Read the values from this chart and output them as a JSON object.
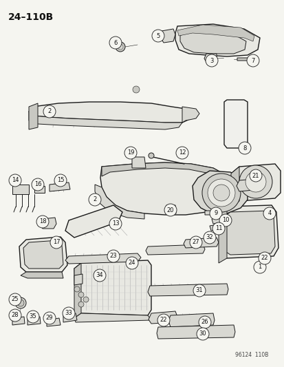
{
  "title": "24–110B",
  "bg_color": "#f5f5f0",
  "line_color": "#1a1a1a",
  "label_color": "#111111",
  "watermark": "96124  110B",
  "fig_width": 4.14,
  "fig_height": 5.33,
  "dpi": 100,
  "circle_r": 0.022,
  "label_fontsize": 6.0,
  "title_fontsize": 10,
  "wm_fontsize": 5.5
}
